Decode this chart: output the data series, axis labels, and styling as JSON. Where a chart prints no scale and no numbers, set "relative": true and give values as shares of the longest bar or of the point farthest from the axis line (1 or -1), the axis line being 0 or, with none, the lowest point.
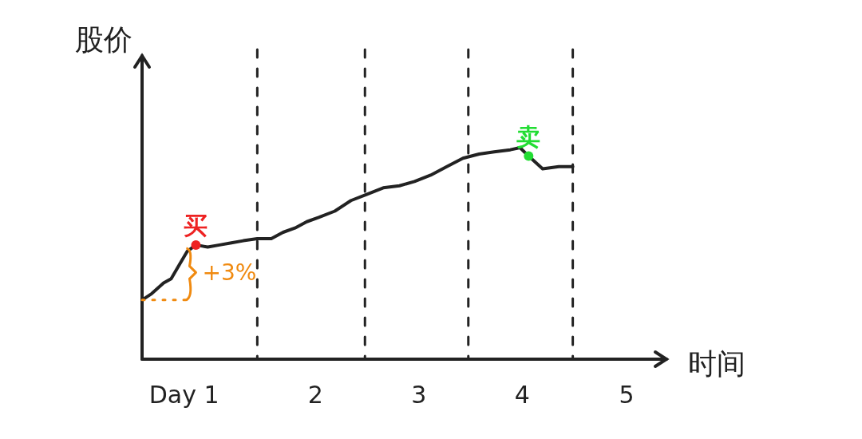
{
  "chart_data": {
    "type": "line",
    "relative": true,
    "xlabel": "时间",
    "ylabel": "股价",
    "x": [
      0,
      0.09,
      0.2,
      0.27,
      0.35,
      0.42,
      0.5,
      0.61,
      0.72,
      0.83,
      0.94,
      1.07,
      1.2,
      1.31,
      1.42,
      1.53,
      1.64,
      1.79,
      1.94,
      2.09,
      2.24,
      2.39,
      2.53,
      2.68,
      2.83,
      2.98,
      3.13,
      3.27,
      3.42,
      3.51,
      3.59,
      3.72,
      3.87,
      4.0
    ],
    "xlim": [
      0,
      4.87
    ],
    "xticks": [
      {
        "value": 0.39,
        "label": "Day 1"
      },
      {
        "value": 1.61,
        "label": "2"
      },
      {
        "value": 2.57,
        "label": "3"
      },
      {
        "value": 3.53,
        "label": "4"
      },
      {
        "value": 4.5,
        "label": "5"
      }
    ],
    "series": [
      {
        "type": "line",
        "color": "#222222",
        "values": [
          0.28,
          0.31,
          0.36,
          0.38,
          0.45,
          0.51,
          0.54,
          0.53,
          0.54,
          0.55,
          0.56,
          0.57,
          0.57,
          0.6,
          0.62,
          0.65,
          0.67,
          0.7,
          0.75,
          0.78,
          0.81,
          0.82,
          0.84,
          0.87,
          0.91,
          0.95,
          0.97,
          0.98,
          0.99,
          1.0,
          0.96,
          0.9,
          0.91,
          0.91
        ]
      },
      {
        "type": "scatter",
        "color": "#ee2222",
        "x": [
          0.5
        ],
        "values": [
          0.54
        ]
      },
      {
        "type": "scatter",
        "color": "#22dd33",
        "x": [
          3.59
        ],
        "values": [
          0.96
        ]
      }
    ],
    "ref_lines": [
      {
        "axis": "x",
        "value": 1.07,
        "line_style": "dashed"
      },
      {
        "axis": "x",
        "value": 2.07,
        "line_style": "dashed"
      },
      {
        "axis": "x",
        "value": 3.03,
        "line_style": "dashed"
      },
      {
        "axis": "x",
        "value": 4.0,
        "line_style": "dashed"
      }
    ],
    "annotations": [
      {
        "text": "买",
        "x": 0.5,
        "y": 0.54
      },
      {
        "text": "卖",
        "x": 3.59,
        "y": 0.96
      },
      "+3%"
    ],
    "line_style": "solid"
  }
}
